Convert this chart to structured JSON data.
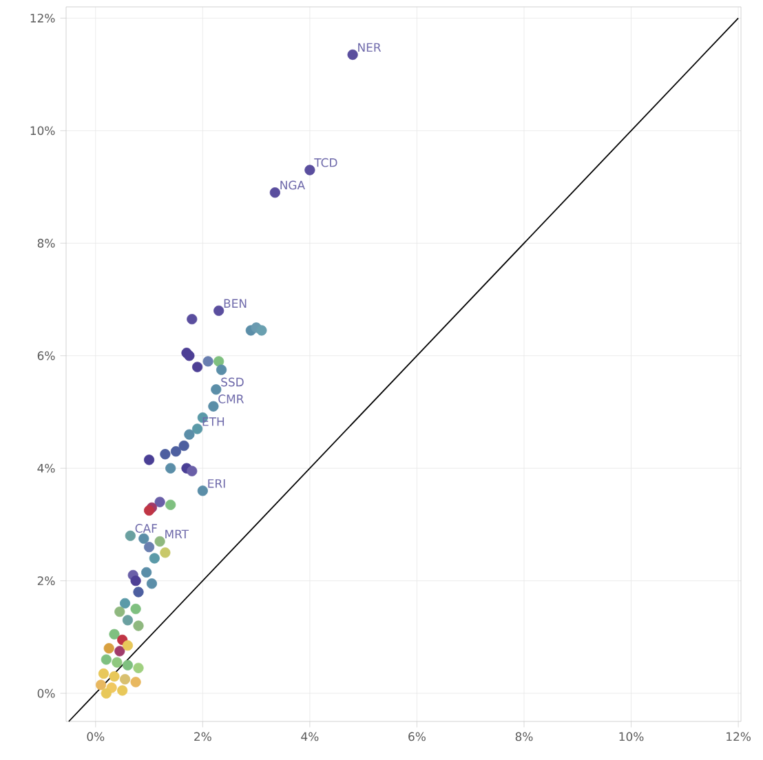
{
  "chart_data": {
    "type": "scatter",
    "xlim": [
      -0.55,
      12.05
    ],
    "ylim": [
      -0.5,
      12.2
    ],
    "xticks": [
      {
        "value": 0,
        "label": "0%"
      },
      {
        "value": 2,
        "label": "2%"
      },
      {
        "value": 4,
        "label": "4%"
      },
      {
        "value": 6,
        "label": "6%"
      },
      {
        "value": 8,
        "label": "8%"
      },
      {
        "value": 10,
        "label": "10%"
      },
      {
        "value": 12,
        "label": "12%"
      }
    ],
    "yticks": [
      {
        "value": 0,
        "label": "0%"
      },
      {
        "value": 2,
        "label": "2%"
      },
      {
        "value": 4,
        "label": "4%"
      },
      {
        "value": 6,
        "label": "6%"
      },
      {
        "value": 8,
        "label": "8%"
      },
      {
        "value": 10,
        "label": "10%"
      },
      {
        "value": 12,
        "label": "12%"
      }
    ],
    "grid": true,
    "marker": "circle",
    "series": [
      {
        "x": [
          4.8,
          4.0,
          3.35,
          2.3,
          1.8,
          2.9,
          3.0,
          3.1,
          1.7,
          1.75,
          1.9,
          2.1,
          2.3,
          2.35,
          2.25,
          2.2,
          2.0,
          1.9,
          1.75,
          1.65,
          1.5,
          1.3,
          1.0,
          1.4,
          1.7,
          1.8,
          2.0,
          1.2,
          1.05,
          1.0,
          1.4,
          0.65,
          0.9,
          1.2,
          1.0,
          1.3,
          1.1,
          0.7,
          0.75,
          0.95,
          1.05,
          0.8,
          0.55,
          0.75,
          0.45,
          0.6,
          0.8,
          0.35,
          0.5,
          0.25,
          0.45,
          0.6,
          0.2,
          0.4,
          0.6,
          0.8,
          0.15,
          0.35,
          0.55,
          0.75,
          0.1,
          0.3,
          0.5,
          0.2
        ],
        "values": [
          11.35,
          9.3,
          8.9,
          6.8,
          6.65,
          6.45,
          6.5,
          6.45,
          6.05,
          6.0,
          5.8,
          5.9,
          5.9,
          5.75,
          5.4,
          5.1,
          4.9,
          4.7,
          4.6,
          4.4,
          4.3,
          4.25,
          4.15,
          4.0,
          4.0,
          3.95,
          3.6,
          3.4,
          3.3,
          3.25,
          3.35,
          2.8,
          2.75,
          2.7,
          2.6,
          2.5,
          2.4,
          2.1,
          2.0,
          2.15,
          1.95,
          1.8,
          1.6,
          1.5,
          1.45,
          1.3,
          1.2,
          1.05,
          0.95,
          0.8,
          0.75,
          0.85,
          0.6,
          0.55,
          0.5,
          0.45,
          0.35,
          0.3,
          0.25,
          0.2,
          0.15,
          0.1,
          0.05,
          0.0
        ],
        "colors": [
          "#5a4e9e",
          "#5a4e9e",
          "#5a4e9e",
          "#5a4e9e",
          "#5a4e9e",
          "#5b8ea8",
          "#6a9ab0",
          "#6aa0b0",
          "#4d3f95",
          "#4d3f95",
          "#4d3f95",
          "#6a7fb0",
          "#7fc080",
          "#5b8ea8",
          "#5b8ea8",
          "#5b8ea8",
          "#5b9aa8",
          "#5b9aa8",
          "#5b8ea8",
          "#4d5fa0",
          "#4d5fa0",
          "#4d5fa0",
          "#4a3f95",
          "#5b8ea8",
          "#4a3f95",
          "#6a5fa8",
          "#5b8ea8",
          "#6a5fa8",
          "#a03a6a",
          "#c03545",
          "#7fc080",
          "#6aa0a0",
          "#5b8ea8",
          "#8fb87f",
          "#6a7fb0",
          "#c8c86a",
          "#5b9aa8",
          "#6a5fa8",
          "#4d3f95",
          "#5b8ea8",
          "#5b8ea8",
          "#4d5fa0",
          "#5b9aa8",
          "#7fc080",
          "#8fb87f",
          "#6aa0a0",
          "#8fb87f",
          "#7fc080",
          "#c03545",
          "#d8a040",
          "#a03a6a",
          "#e8c85a",
          "#7fc080",
          "#8fc87f",
          "#7fc080",
          "#a0d080",
          "#e8c85a",
          "#e8c85a",
          "#d8c070",
          "#e8b860",
          "#e8b860",
          "#f0c860",
          "#e8c85a",
          "#e8c85a"
        ]
      },
      {
        "type": "line",
        "x": [
          -0.5,
          12.0
        ],
        "values": [
          -0.5,
          12.0
        ],
        "color": "#000000",
        "marker": "none"
      }
    ],
    "annotations": [
      {
        "text": "NER",
        "x": 4.8,
        "y": 11.35
      },
      {
        "text": "TCD",
        "x": 4.0,
        "y": 9.3
      },
      {
        "text": "NGA",
        "x": 3.35,
        "y": 8.9
      },
      {
        "text": "BEN",
        "x": 2.3,
        "y": 6.8
      },
      {
        "text": "SSD",
        "x": 2.25,
        "y": 5.4
      },
      {
        "text": "CMR",
        "x": 2.2,
        "y": 5.1
      },
      {
        "text": "ETH",
        "x": 1.9,
        "y": 4.7
      },
      {
        "text": "ERI",
        "x": 2.0,
        "y": 3.6
      },
      {
        "text": "CAF",
        "x": 0.65,
        "y": 2.8
      },
      {
        "text": "MRT",
        "x": 1.2,
        "y": 2.7
      }
    ]
  }
}
